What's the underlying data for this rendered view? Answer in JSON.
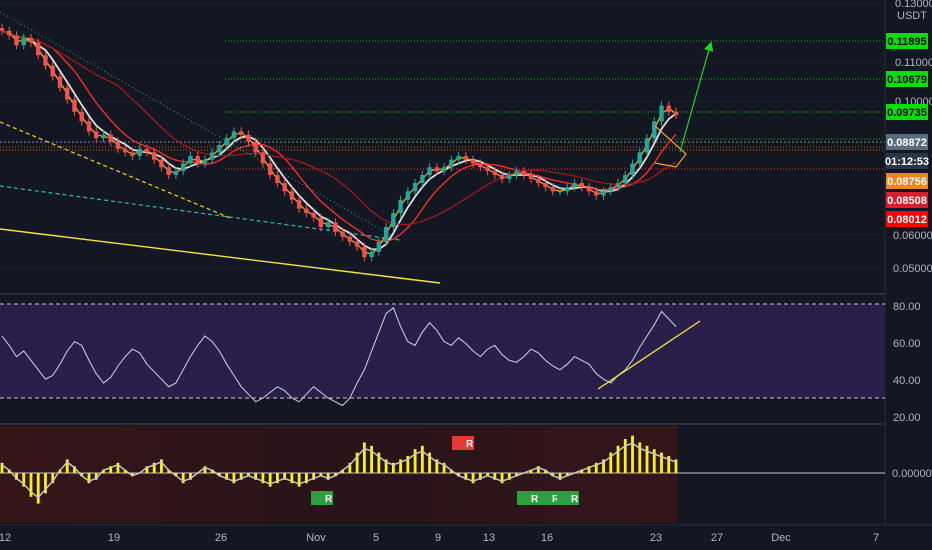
{
  "chart_data": [
    {
      "type": "candlestick",
      "title": "",
      "quote_currency": "USDT",
      "y_scale": "log",
      "ylim": [
        0.046,
        0.135
      ],
      "y_ticks": [
        {
          "label": "0.13000",
          "value": 0.13
        },
        {
          "label": "0.11000",
          "value": 0.11
        },
        {
          "label": "0.10000",
          "value": 0.1
        },
        {
          "label": "0.06000",
          "value": 0.06
        },
        {
          "label": "0.05000",
          "value": 0.05
        }
      ],
      "x_ticks": [
        "12",
        "19",
        "26",
        "Nov",
        "5",
        "9",
        "13",
        "16",
        "23",
        "27",
        "Dec",
        "7"
      ],
      "close": [
        0.118,
        0.116,
        0.112,
        0.115,
        0.113,
        0.108,
        0.104,
        0.1,
        0.096,
        0.092,
        0.088,
        0.085,
        0.082,
        0.08,
        0.081,
        0.079,
        0.077,
        0.076,
        0.075,
        0.077,
        0.076,
        0.074,
        0.072,
        0.07,
        0.071,
        0.073,
        0.075,
        0.073,
        0.074,
        0.076,
        0.078,
        0.08,
        0.082,
        0.081,
        0.079,
        0.076,
        0.073,
        0.07,
        0.068,
        0.066,
        0.064,
        0.062,
        0.061,
        0.06,
        0.058,
        0.059,
        0.057,
        0.056,
        0.055,
        0.054,
        0.052,
        0.053,
        0.055,
        0.058,
        0.061,
        0.064,
        0.066,
        0.068,
        0.07,
        0.072,
        0.071,
        0.072,
        0.074,
        0.075,
        0.074,
        0.073,
        0.072,
        0.071,
        0.07,
        0.069,
        0.07,
        0.071,
        0.07,
        0.069,
        0.068,
        0.067,
        0.066,
        0.066,
        0.067,
        0.068,
        0.067,
        0.066,
        0.065,
        0.066,
        0.067,
        0.068,
        0.07,
        0.073,
        0.076,
        0.08,
        0.085,
        0.09,
        0.088,
        0.087
      ],
      "levels": [
        {
          "price": 0.11895,
          "label": "0.11895",
          "style": "dotted",
          "color": "#00ff00"
        },
        {
          "price": 0.10679,
          "label": "0.10679",
          "style": "dotted",
          "color": "#00ff00"
        },
        {
          "price": 0.09735,
          "label": "0.09735",
          "style": "dotted",
          "color": "#00ff00"
        },
        {
          "price": 0.08508,
          "label": "0.08508",
          "style": "dotted",
          "color": "#ff5252"
        }
      ],
      "price_labels": [
        {
          "label": "0.08872",
          "color": "#5b6b7e"
        },
        {
          "label": "01:12:53",
          "color": "#2a3447"
        },
        {
          "label": "0.08756",
          "color": "#f0851e"
        },
        {
          "label": "0.08508",
          "color": "#d81e28"
        },
        {
          "label": "0.08012",
          "color": "#ff0000"
        }
      ],
      "moving_averages": [
        {
          "color": "#e0e0e0",
          "period": 50
        },
        {
          "color": "#ff3030",
          "period": 100
        },
        {
          "color": "#f39c12",
          "period": 20
        },
        {
          "color": "#a01818",
          "period": 200
        }
      ],
      "up_color": "#26a69a",
      "down_color": "#ef5350",
      "annotations": [
        "descending trendline",
        "bull pennant",
        "target arrow"
      ]
    },
    {
      "type": "line",
      "title": "",
      "ylim": [
        15,
        85
      ],
      "y_ticks": [
        "80.00",
        "60.00",
        "40.00",
        "20.00"
      ],
      "bands": [
        30,
        80
      ],
      "values": [
        63,
        58,
        52,
        55,
        50,
        45,
        40,
        42,
        48,
        55,
        60,
        58,
        50,
        43,
        38,
        41,
        47,
        52,
        56,
        54,
        48,
        44,
        40,
        36,
        38,
        45,
        52,
        58,
        63,
        60,
        55,
        48,
        42,
        36,
        32,
        28,
        30,
        33,
        36,
        34,
        30,
        28,
        32,
        36,
        33,
        30,
        28,
        26,
        30,
        38,
        45,
        55,
        65,
        75,
        78,
        68,
        60,
        58,
        65,
        70,
        66,
        60,
        58,
        62,
        59,
        55,
        52,
        56,
        58,
        53,
        50,
        49,
        52,
        56,
        54,
        50,
        47,
        45,
        48,
        52,
        50,
        48,
        43,
        40,
        38,
        42,
        45,
        50,
        57,
        63,
        69,
        76,
        72,
        68
      ],
      "line_color": "#d1d4dc",
      "band_fill": "#2a1f4a"
    },
    {
      "type": "bar",
      "title": "",
      "y_ticks": [
        "0.00000"
      ],
      "values": [
        0.3,
        0.1,
        -0.2,
        -0.4,
        -0.7,
        -0.9,
        -0.6,
        -0.3,
        0.1,
        0.4,
        0.2,
        -0.1,
        -0.3,
        -0.2,
        0.1,
        0.2,
        0.3,
        0.1,
        -0.1,
        0.0,
        0.2,
        0.3,
        0.4,
        0.1,
        -0.1,
        -0.3,
        -0.2,
        0.0,
        0.2,
        0.1,
        -0.1,
        -0.2,
        -0.3,
        -0.2,
        -0.1,
        -0.2,
        -0.3,
        -0.4,
        -0.3,
        -0.2,
        -0.3,
        -0.4,
        -0.3,
        -0.2,
        -0.1,
        -0.2,
        -0.1,
        0.1,
        0.3,
        0.6,
        0.9,
        0.8,
        0.6,
        0.4,
        0.3,
        0.4,
        0.5,
        0.7,
        0.8,
        0.6,
        0.4,
        0.3,
        0.1,
        -0.1,
        -0.2,
        -0.3,
        -0.2,
        -0.1,
        -0.2,
        -0.3,
        -0.2,
        -0.1,
        0.0,
        0.1,
        0.2,
        0.1,
        -0.1,
        -0.2,
        -0.1,
        0.0,
        0.1,
        0.2,
        0.3,
        0.4,
        0.6,
        0.8,
        1.0,
        1.1,
        0.9,
        0.8,
        0.7,
        0.6,
        0.5,
        0.4
      ],
      "bar_color": "#f5f513",
      "badges": [
        "R",
        "R",
        "R",
        "R",
        "R"
      ]
    }
  ]
}
